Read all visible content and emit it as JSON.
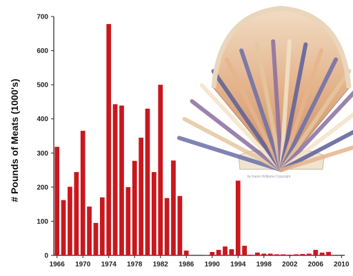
{
  "chart_data": {
    "type": "bar",
    "ylabel": "# Pounds of Meats (1000's)",
    "xlabel": "",
    "ylim": [
      0,
      700
    ],
    "yticks": [
      0,
      100,
      200,
      300,
      400,
      500,
      600,
      700
    ],
    "xticks": [
      "1966",
      "1970",
      "1974",
      "1978",
      "1982",
      "1986",
      "1990",
      "1994",
      "1998",
      "2002",
      "2006",
      "2010"
    ],
    "grid": false,
    "bar_color": "#c8181e",
    "x": [
      1966,
      1967,
      1968,
      1969,
      1970,
      1971,
      1972,
      1973,
      1974,
      1975,
      1976,
      1977,
      1978,
      1979,
      1980,
      1981,
      1982,
      1983,
      1984,
      1985,
      1986,
      1987,
      1988,
      1989,
      1990,
      1991,
      1992,
      1993,
      1994,
      1995,
      1996,
      1997,
      1998,
      1999,
      2000,
      2001,
      2002,
      2003,
      2004,
      2005,
      2006,
      2007,
      2008
    ],
    "values": [
      318,
      162,
      201,
      244,
      365,
      143,
      95,
      170,
      678,
      443,
      439,
      200,
      277,
      345,
      430,
      244,
      500,
      168,
      278,
      174,
      14,
      0,
      0,
      1,
      10,
      16,
      26,
      18,
      219,
      28,
      2,
      8,
      5,
      5,
      3,
      3,
      2,
      3,
      4,
      5,
      16,
      8,
      10
    ]
  },
  "illustration": {
    "name": "scallop-shell",
    "credit": "by Karen Williams Copyright"
  }
}
